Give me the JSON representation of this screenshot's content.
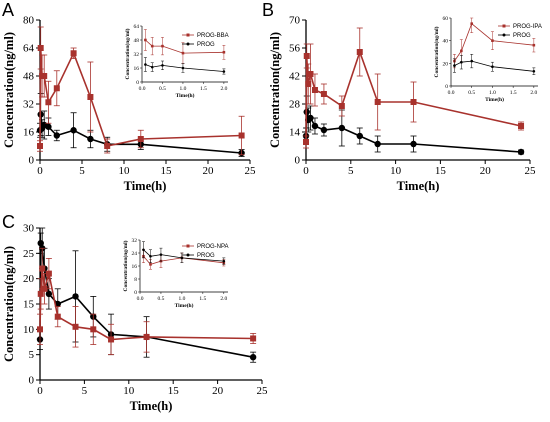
{
  "colors": {
    "series1": "#a8322d",
    "series2": "#000000"
  },
  "chart_data": [
    {
      "type": "line",
      "panel_label": "A",
      "xlabel": "Time(h)",
      "ylabel": "Concentration(ng/ml)",
      "xlim": [
        0,
        25
      ],
      "ylim": [
        0,
        80
      ],
      "xticks": [
        0,
        5,
        10,
        15,
        20,
        25
      ],
      "yticks": [
        0,
        16,
        32,
        48,
        64,
        80
      ],
      "series": [
        {
          "name": "PROG-BBA",
          "color": "#a8322d",
          "marker": "square",
          "x": [
            0,
            0.083,
            0.25,
            0.5,
            1,
            2,
            4,
            6,
            8,
            12,
            24
          ],
          "y": [
            8,
            64,
            48,
            48,
            33,
            41,
            61,
            36,
            8,
            12,
            14
          ],
          "err": [
            3,
            12,
            12,
            12,
            12,
            10,
            3,
            20,
            4,
            5,
            11
          ]
        },
        {
          "name": "PROG",
          "color": "#000000",
          "marker": "circle",
          "x": [
            0,
            0.083,
            0.25,
            0.5,
            1,
            2,
            4,
            6,
            8,
            12,
            24
          ],
          "y": [
            17,
            26,
            18,
            20,
            19,
            14,
            17,
            12,
            9,
            9,
            4
          ],
          "err": [
            4,
            12,
            5,
            8,
            5,
            3,
            10,
            5,
            4,
            3,
            2
          ]
        }
      ],
      "inset": {
        "xlabel": "Time(h)",
        "ylabel": "Concentration(ng/ml)",
        "xlim": [
          0,
          2.1
        ],
        "ylim": [
          0,
          64
        ],
        "xticks": [
          0,
          0.5,
          1,
          1.5,
          2
        ],
        "xtick_labels": [
          "0.0",
          "0.5",
          "1.0",
          "1.5",
          "2.0"
        ],
        "yticks": [
          0,
          16,
          32,
          48,
          64
        ],
        "series": [
          {
            "name": "PROG-BBA",
            "x": [
              0.083,
              0.25,
              0.5,
              1,
              2
            ],
            "y": [
              48,
              41,
              41,
              33,
              34
            ],
            "err": [
              12,
              10,
              10,
              12,
              8
            ]
          },
          {
            "name": "PROG",
            "x": [
              0.083,
              0.25,
              0.5,
              1,
              2
            ],
            "y": [
              20,
              17,
              19,
              16,
              12
            ],
            "err": [
              8,
              5,
              5,
              5,
              3
            ]
          }
        ]
      }
    },
    {
      "type": "line",
      "panel_label": "B",
      "xlabel": "Time(h)",
      "ylabel": "Concentration(ng/ml)",
      "xlim": [
        0,
        25
      ],
      "ylim": [
        0,
        70
      ],
      "xticks": [
        0,
        5,
        10,
        15,
        20,
        25
      ],
      "yticks": [
        0,
        14,
        28,
        42,
        56,
        70
      ],
      "series": [
        {
          "name": "PROG-IPA",
          "color": "#a8322d",
          "marker": "square",
          "x": [
            0,
            0.083,
            0.25,
            0.5,
            1,
            2,
            4,
            6,
            8,
            12,
            24
          ],
          "y": [
            9,
            52,
            38,
            43,
            35,
            33,
            27,
            54,
            29,
            29,
            17
          ],
          "err": [
            3,
            6,
            10,
            15,
            8,
            5,
            5,
            12,
            14,
            10,
            2
          ]
        },
        {
          "name": "PROG",
          "color": "#000000",
          "marker": "circle",
          "x": [
            0,
            0.083,
            0.25,
            0.5,
            1,
            2,
            4,
            6,
            8,
            12,
            24
          ],
          "y": [
            12,
            24,
            20,
            21,
            17,
            15,
            16,
            12,
            8,
            8,
            4
          ],
          "err": [
            4,
            8,
            6,
            6,
            4,
            3,
            9,
            4,
            4,
            4,
            1
          ]
        }
      ],
      "inset": {
        "xlabel": "Time(h)",
        "ylabel": "Concentration(ng/ml)",
        "xlim": [
          0,
          2.1
        ],
        "ylim": [
          0,
          60
        ],
        "xticks": [
          0,
          0.5,
          1,
          1.5,
          2
        ],
        "xtick_labels": [
          "0.0",
          "0.5",
          "1.0",
          "1.5",
          "2.0"
        ],
        "yticks": [
          0,
          20,
          40,
          60
        ],
        "series": [
          {
            "name": "PROG-IPA",
            "x": [
              0.083,
              0.25,
              0.5,
              1,
              2
            ],
            "y": [
              22,
              31,
              55,
              40,
              36
            ],
            "err": [
              6,
              10,
              8,
              8,
              6
            ]
          },
          {
            "name": "PROG",
            "x": [
              0.083,
              0.25,
              0.5,
              1,
              2
            ],
            "y": [
              18,
              21,
              22,
              17,
              13
            ],
            "err": [
              6,
              6,
              6,
              4,
              3
            ]
          }
        ]
      }
    },
    {
      "type": "line",
      "panel_label": "C",
      "xlabel": "Time(h)",
      "ylabel": "Concentration(ng/ml)",
      "xlim": [
        0,
        25
      ],
      "ylim": [
        0,
        30
      ],
      "xticks": [
        0,
        5,
        10,
        15,
        20,
        25
      ],
      "yticks": [
        0,
        5,
        10,
        15,
        20,
        25,
        30
      ],
      "series": [
        {
          "name": "PROG-NPA",
          "color": "#a8322d",
          "marker": "square",
          "x": [
            0,
            0.083,
            0.25,
            0.5,
            1,
            2,
            4,
            6,
            8,
            12,
            24
          ],
          "y": [
            10,
            17,
            22,
            18,
            21,
            12.5,
            10.5,
            10,
            8,
            8.5,
            8.2
          ],
          "err": [
            3,
            3,
            4,
            3,
            3,
            2,
            4,
            3,
            3,
            3,
            1
          ]
        },
        {
          "name": "PROG",
          "color": "#000000",
          "marker": "circle",
          "x": [
            0,
            0.083,
            0.25,
            0.5,
            1,
            2,
            4,
            6,
            8,
            12,
            24
          ],
          "y": [
            8,
            27,
            26,
            22,
            17,
            15,
            16.5,
            12.5,
            9,
            8.5,
            4.5
          ],
          "err": [
            2,
            2,
            4,
            4,
            3,
            3,
            9,
            4,
            4,
            4,
            1
          ]
        }
      ],
      "inset": {
        "xlabel": "Time(h)",
        "ylabel": "Concentration(ng/ml)",
        "xlim": [
          0,
          2.1
        ],
        "ylim": [
          0,
          32
        ],
        "xticks": [
          0,
          0.5,
          1,
          1.5,
          2
        ],
        "xtick_labels": [
          "0.0",
          "0.5",
          "1.0",
          "1.5",
          "2.0"
        ],
        "yticks": [
          0,
          8,
          16,
          24,
          32
        ],
        "series": [
          {
            "name": "PROG-NPA",
            "x": [
              0.083,
              0.25,
              0.5,
              1,
              2
            ],
            "y": [
              22,
              17,
              19,
              21,
              18
            ],
            "err": [
              4,
              3,
              4,
              3,
              2
            ]
          },
          {
            "name": "PROG",
            "x": [
              0.083,
              0.25,
              0.5,
              1,
              2
            ],
            "y": [
              26,
              22,
              23,
              21,
              19
            ],
            "err": [
              5,
              4,
              4,
              3,
              2
            ]
          }
        ]
      }
    }
  ]
}
